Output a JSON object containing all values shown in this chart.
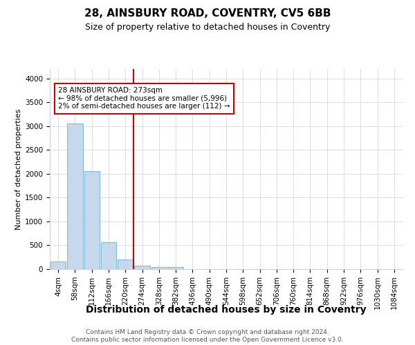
{
  "title": "28, AINSBURY ROAD, COVENTRY, CV5 6BB",
  "subtitle": "Size of property relative to detached houses in Coventry",
  "xlabel": "Distribution of detached houses by size in Coventry",
  "ylabel": "Number of detached properties",
  "bar_labels": [
    "4sqm",
    "58sqm",
    "112sqm",
    "166sqm",
    "220sqm",
    "274sqm",
    "328sqm",
    "382sqm",
    "436sqm",
    "490sqm",
    "544sqm",
    "598sqm",
    "652sqm",
    "706sqm",
    "760sqm",
    "814sqm",
    "868sqm",
    "922sqm",
    "976sqm",
    "1030sqm",
    "1084sqm"
  ],
  "bar_values": [
    155,
    3050,
    2060,
    560,
    210,
    75,
    50,
    40,
    0,
    0,
    0,
    0,
    0,
    0,
    0,
    0,
    0,
    0,
    0,
    0,
    0
  ],
  "bar_color": "#c6d9ec",
  "bar_edge_color": "#6baed6",
  "property_line_index": 5,
  "property_line_color": "#cc0000",
  "annotation_box_color": "#cc0000",
  "annotation_text_line1": "28 AINSBURY ROAD: 273sqm",
  "annotation_text_line2": "← 98% of detached houses are smaller (5,996)",
  "annotation_text_line3": "2% of semi-detached houses are larger (112) →",
  "ylim": [
    0,
    4200
  ],
  "yticks": [
    0,
    500,
    1000,
    1500,
    2000,
    2500,
    3000,
    3500,
    4000
  ],
  "footer_line1": "Contains HM Land Registry data © Crown copyright and database right 2024.",
  "footer_line2": "Contains public sector information licensed under the Open Government Licence v3.0.",
  "bg_color": "#ffffff",
  "grid_color": "#c8d0d8",
  "title_fontsize": 11,
  "subtitle_fontsize": 9,
  "xlabel_fontsize": 10,
  "ylabel_fontsize": 8,
  "tick_fontsize": 7.5,
  "footer_fontsize": 6.5
}
